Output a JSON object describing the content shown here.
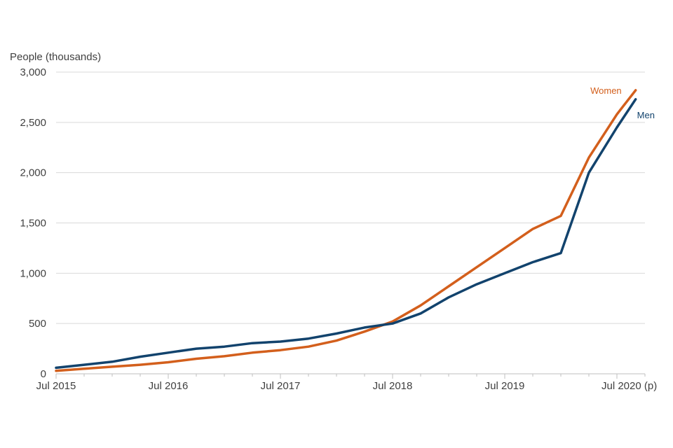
{
  "chart_data": {
    "type": "line",
    "title": "",
    "xlabel": "",
    "ylabel": "People (thousands)",
    "ylim": [
      0,
      3000
    ],
    "yticks": [
      0,
      500,
      1000,
      1500,
      2000,
      2500,
      3000
    ],
    "ytick_labels": [
      "0",
      "500",
      "1,000",
      "1,500",
      "2,000",
      "2,500",
      "3,000"
    ],
    "xlim": [
      "2015-07",
      "2020-10"
    ],
    "xticks": [
      "2015-07",
      "2016-07",
      "2017-07",
      "2018-07",
      "2019-07",
      "2020-07"
    ],
    "xtick_labels": [
      "Jul 2015",
      "Jul 2016",
      "Jul 2017",
      "Jul 2018",
      "Jul 2019",
      "Jul 2020 (p)"
    ],
    "grid": "horizontal",
    "legend": "inline labels at line ends",
    "series": [
      {
        "name": "Women",
        "color": "#d35f1c",
        "x": [
          "2015-07",
          "2015-10",
          "2016-01",
          "2016-04",
          "2016-07",
          "2016-10",
          "2017-01",
          "2017-04",
          "2017-07",
          "2017-10",
          "2018-01",
          "2018-04",
          "2018-07",
          "2018-10",
          "2019-01",
          "2019-04",
          "2019-07",
          "2019-10",
          "2020-01",
          "2020-04",
          "2020-07",
          "2020-09"
        ],
        "y": [
          30,
          50,
          70,
          90,
          115,
          150,
          175,
          210,
          235,
          270,
          330,
          420,
          520,
          680,
          870,
          1060,
          1250,
          1440,
          1570,
          2150,
          2580,
          2820
        ]
      },
      {
        "name": "Men",
        "color": "#12436d",
        "x": [
          "2015-07",
          "2015-10",
          "2016-01",
          "2016-04",
          "2016-07",
          "2016-10",
          "2017-01",
          "2017-04",
          "2017-07",
          "2017-10",
          "2018-01",
          "2018-04",
          "2018-07",
          "2018-10",
          "2019-01",
          "2019-04",
          "2019-07",
          "2019-10",
          "2020-01",
          "2020-04",
          "2020-07",
          "2020-09"
        ],
        "y": [
          60,
          90,
          120,
          170,
          210,
          250,
          270,
          305,
          320,
          350,
          400,
          460,
          500,
          600,
          760,
          890,
          1000,
          1110,
          1200,
          2000,
          2450,
          2730
        ]
      }
    ]
  }
}
